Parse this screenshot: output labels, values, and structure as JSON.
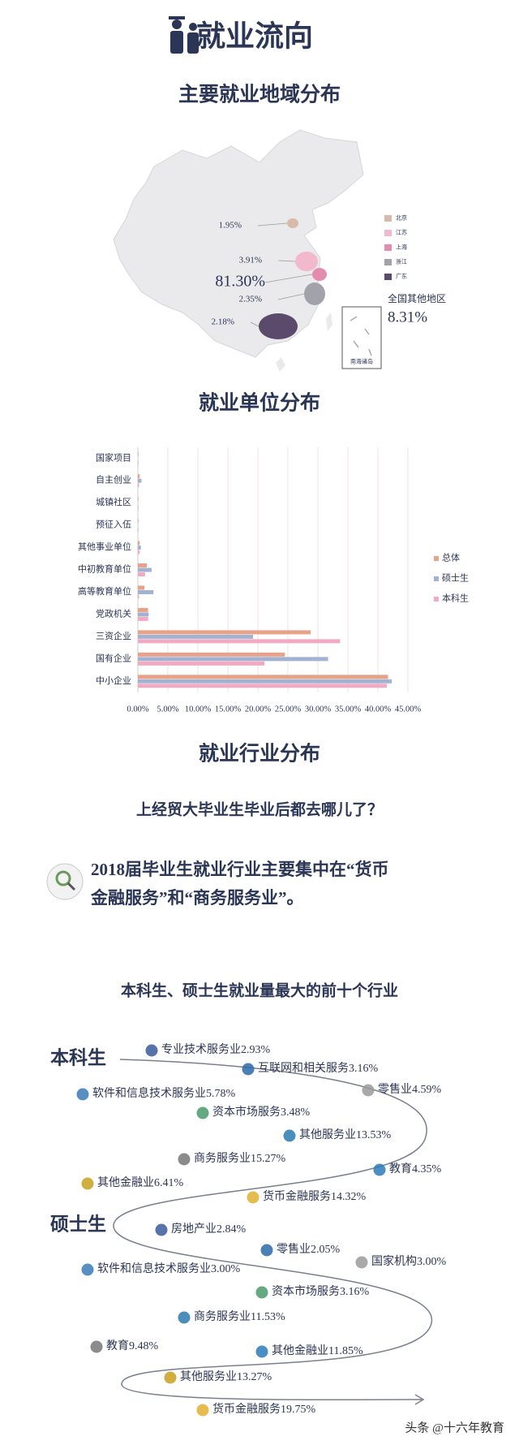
{
  "header": {
    "title": "就业流向"
  },
  "map_section": {
    "title": "主要就业地域分布",
    "regions": [
      {
        "name": "北京",
        "color": "#d9b9a9",
        "value_label": "1.95%"
      },
      {
        "name": "江苏",
        "color": "#f2b8cc",
        "value_label": "3.91%"
      },
      {
        "name": "上海",
        "color": "#e58cae",
        "value_label": "81.30%"
      },
      {
        "name": "浙江",
        "color": "#a2a2ab",
        "value_label": "2.35%"
      },
      {
        "name": "广东",
        "color": "#5b4a6c",
        "value_label": "2.18%"
      }
    ],
    "others": {
      "label": "全国其他地区",
      "value_label": "8.31%"
    },
    "inset_label": "南海诸岛"
  },
  "chart_data": {
    "type": "bar",
    "orientation": "horizontal",
    "title": "就业单位分布",
    "categories": [
      "国家项目",
      "自主创业",
      "城镇社区",
      "预征入伍",
      "其他事业单位",
      "中初教育单位",
      "高等教育单位",
      "党政机关",
      "三资企业",
      "国有企业",
      "中小企业"
    ],
    "series": [
      {
        "name": "总体",
        "color": "#e9a28a",
        "values": [
          0.1,
          0.3,
          0.1,
          0.1,
          0.3,
          1.5,
          1.1,
          1.7,
          28.8,
          24.5,
          41.7
        ]
      },
      {
        "name": "硕士生",
        "color": "#a2b2d2",
        "values": [
          0,
          0.6,
          0,
          0,
          0.5,
          2.3,
          2.6,
          1.8,
          19.2,
          31.7,
          42.3
        ]
      },
      {
        "name": "本科生",
        "color": "#f2a9c2",
        "values": [
          0.1,
          0.2,
          0.1,
          0.1,
          0.3,
          1.2,
          0.2,
          1.7,
          33.7,
          21.1,
          41.5
        ]
      }
    ],
    "xlim": [
      0,
      45
    ],
    "xticks": [
      {
        "value": 0,
        "label": "0.00%"
      },
      {
        "value": 5,
        "label": "5.00%"
      },
      {
        "value": 10,
        "label": "10.00%"
      },
      {
        "value": 15,
        "label": "15.00%"
      },
      {
        "value": 20,
        "label": "20.00%"
      },
      {
        "value": 25,
        "label": "25.00%"
      },
      {
        "value": 30,
        "label": "30.00%"
      },
      {
        "value": 35,
        "label": "35.00%"
      },
      {
        "value": 40,
        "label": "40.00%"
      },
      {
        "value": 45,
        "label": "45.00%"
      }
    ],
    "grid": true,
    "legend": "right"
  },
  "industry_section": {
    "title": "就业行业分布",
    "question": "上经贸大毕业生毕业后都去哪儿了？",
    "note": [
      "2018届毕业生就业行业主要集中在“货币",
      "金融服务”和“商务服务业”。"
    ],
    "heading": "本科生、硕士生就业量最大的前十个行业",
    "groups": [
      {
        "name": "本科生",
        "items": [
          "专业技术服务业2.93%",
          "互联网和相关服务3.16%",
          "零售业4.59%",
          "软件和信息技术服务业5.78%",
          "资本市场服务3.48%",
          "其他服务业13.53%",
          "商务服务业15.27%",
          "教育4.35%",
          "其他金融业6.41%",
          "货币金融服务14.32%"
        ]
      },
      {
        "name": "硕士生",
        "items": [
          "房地产业2.84%",
          "零售业2.05%",
          "国家机构3.00%",
          "软件和信息技术服务业3.00%",
          "资本市场服务3.16%",
          "商务服务业11.53%",
          "教育9.48%",
          "其他金融业11.85%",
          "其他服务业13.27%",
          "货币金融服务19.75%"
        ]
      }
    ]
  },
  "watermark": "头条 @十六年教育"
}
